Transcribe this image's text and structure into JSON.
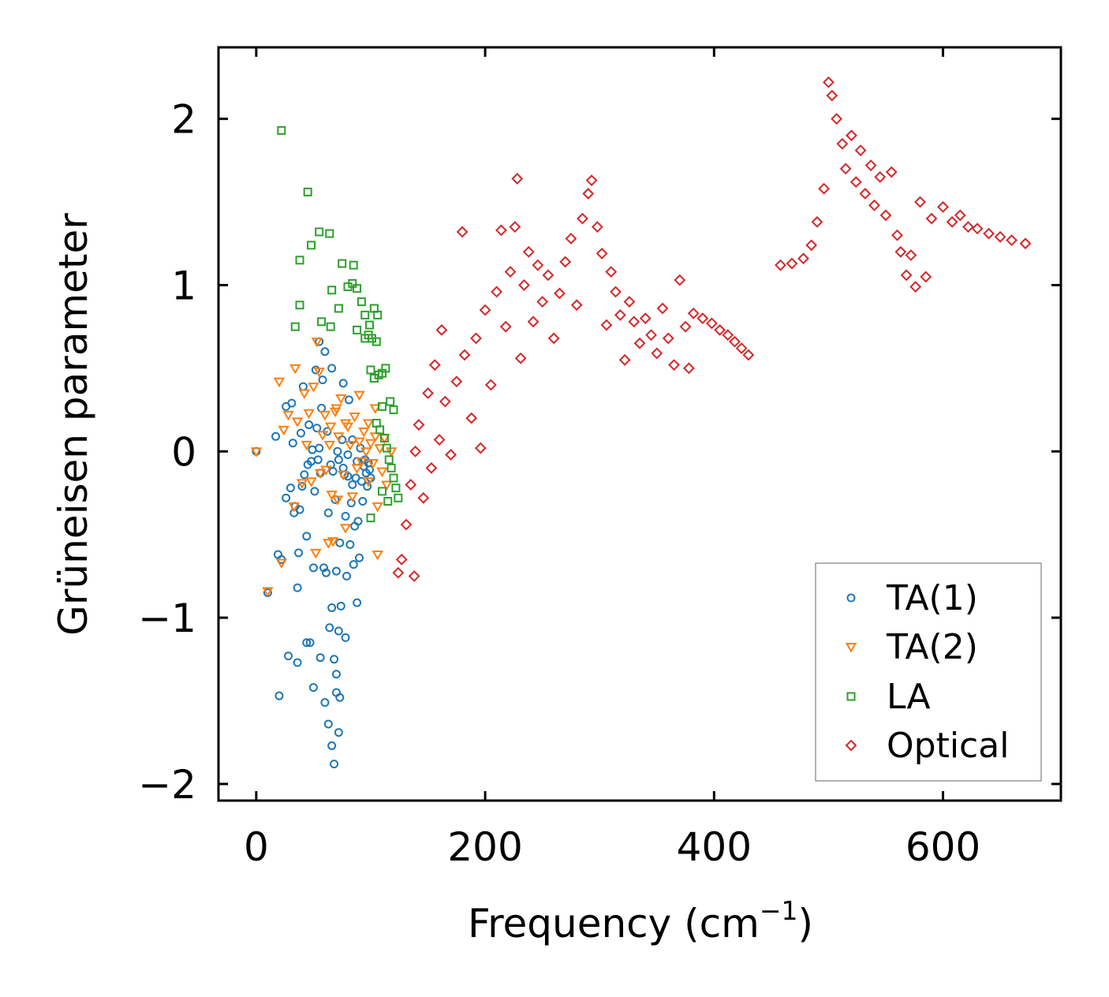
{
  "chart_data": {
    "type": "scatter",
    "title": "",
    "xlabel": "Frequency (cm",
    "xlabel_sup": "−1",
    "xlabel_end": ")",
    "ylabel": "Grüneisen parameter",
    "xlim": [
      -33,
      703
    ],
    "ylim": [
      -2.1,
      2.43
    ],
    "xticks": [
      0,
      200,
      400,
      600
    ],
    "yticks": [
      2,
      1,
      0,
      -1,
      -2
    ],
    "xtick_labels": [
      "0",
      "200",
      "400",
      "600"
    ],
    "ytick_labels": [
      "2",
      "1",
      "0",
      "−1",
      "−2"
    ],
    "legend_position": "lower-right",
    "series": [
      {
        "name": "TA(1)",
        "marker": "circle",
        "color": "#1f77b4",
        "points": [
          [
            0,
            0
          ],
          [
            10,
            -0.85
          ],
          [
            17,
            0.09
          ],
          [
            19,
            -0.62
          ],
          [
            20,
            -1.47
          ],
          [
            22,
            -0.65
          ],
          [
            26,
            0.27
          ],
          [
            26,
            -0.28
          ],
          [
            28,
            -1.23
          ],
          [
            30,
            -0.22
          ],
          [
            31,
            0.29
          ],
          [
            32,
            0.05
          ],
          [
            33,
            -0.37
          ],
          [
            34,
            -0.33
          ],
          [
            36,
            -1.27
          ],
          [
            36,
            -0.82
          ],
          [
            37,
            -0.61
          ],
          [
            38,
            -0.35
          ],
          [
            39,
            0.11
          ],
          [
            40,
            -0.21
          ],
          [
            41,
            0.39
          ],
          [
            42,
            -0.14
          ],
          [
            44,
            -1.15
          ],
          [
            44,
            -0.51
          ],
          [
            45,
            -0.08
          ],
          [
            46,
            0.16
          ],
          [
            47,
            -1.15
          ],
          [
            48,
            -0.06
          ],
          [
            49,
            0.01
          ],
          [
            50,
            -1.42
          ],
          [
            50,
            -0.7
          ],
          [
            51,
            -0.24
          ],
          [
            52,
            0.49
          ],
          [
            53,
            0.14
          ],
          [
            54,
            -0.05
          ],
          [
            55,
            0.02
          ],
          [
            56,
            -1.24
          ],
          [
            56,
            -0.13
          ],
          [
            57,
            0.26
          ],
          [
            58,
            0.43
          ],
          [
            59,
            -0.7
          ],
          [
            60,
            -1.51
          ],
          [
            61,
            -0.73
          ],
          [
            62,
            0.12
          ],
          [
            63,
            -1.64
          ],
          [
            63,
            -0.37
          ],
          [
            64,
            -1.06
          ],
          [
            65,
            -0.08
          ],
          [
            66,
            -1.77
          ],
          [
            66,
            -0.94
          ],
          [
            67,
            -0.12
          ],
          [
            68,
            -1.88
          ],
          [
            68,
            -1.25
          ],
          [
            69,
            -0.29
          ],
          [
            70,
            -1.34
          ],
          [
            70,
            -1.45
          ],
          [
            70,
            -0.72
          ],
          [
            71,
            0.0
          ],
          [
            72,
            -1.69
          ],
          [
            72,
            -1.08
          ],
          [
            73,
            -1.48
          ],
          [
            73,
            -0.55
          ],
          [
            74,
            -0.93
          ],
          [
            75,
            0.07
          ],
          [
            76,
            0.41
          ],
          [
            77,
            -0.14
          ],
          [
            78,
            -1.12
          ],
          [
            78,
            -0.39
          ],
          [
            79,
            -0.75
          ],
          [
            80,
            -0.02
          ],
          [
            81,
            0.31
          ],
          [
            82,
            -0.56
          ],
          [
            83,
            -0.31
          ],
          [
            84,
            0.07
          ],
          [
            85,
            -0.68
          ],
          [
            86,
            -0.45
          ],
          [
            87,
            -0.16
          ],
          [
            88,
            -0.91
          ],
          [
            89,
            -0.42
          ],
          [
            90,
            -0.64
          ],
          [
            91,
            0.02
          ],
          [
            92,
            -0.18
          ],
          [
            93,
            -0.3
          ],
          [
            94,
            -0.09
          ],
          [
            95,
            -0.05
          ],
          [
            96,
            -0.13
          ],
          [
            97,
            -0.21
          ],
          [
            98,
            -0.07
          ],
          [
            99,
            -0.11
          ],
          [
            100,
            -0.16
          ],
          [
            72,
            -0.05
          ],
          [
            76,
            -0.1
          ],
          [
            80,
            -0.15
          ],
          [
            84,
            -0.2
          ],
          [
            88,
            -0.06
          ],
          [
            66,
            0.5
          ],
          [
            60,
            0.6
          ],
          [
            55,
            0.66
          ]
        ]
      },
      {
        "name": "TA(2)",
        "marker": "triangle-down",
        "color": "#ff7f0e",
        "points": [
          [
            0,
            0
          ],
          [
            10,
            -0.84
          ],
          [
            20,
            0.42
          ],
          [
            22,
            -0.67
          ],
          [
            24,
            0.13
          ],
          [
            28,
            0.22
          ],
          [
            33,
            -0.33
          ],
          [
            34,
            0.5
          ],
          [
            36,
            0.18
          ],
          [
            40,
            -0.19
          ],
          [
            42,
            0.35
          ],
          [
            44,
            0.04
          ],
          [
            46,
            0.23
          ],
          [
            48,
            -0.18
          ],
          [
            50,
            0.39
          ],
          [
            52,
            -0.61
          ],
          [
            53,
            0.66
          ],
          [
            55,
            0.48
          ],
          [
            56,
            -0.13
          ],
          [
            58,
            0.1
          ],
          [
            60,
            0.22
          ],
          [
            61,
            -0.11
          ],
          [
            63,
            -0.55
          ],
          [
            64,
            0.04
          ],
          [
            65,
            0.15
          ],
          [
            67,
            -0.54
          ],
          [
            69,
            0.24
          ],
          [
            71,
            -0.29
          ],
          [
            72,
            0.09
          ],
          [
            74,
            0.32
          ],
          [
            76,
            -0.14
          ],
          [
            78,
            -0.46
          ],
          [
            80,
            0.15
          ],
          [
            82,
            0.04
          ],
          [
            84,
            -0.27
          ],
          [
            86,
            0.21
          ],
          [
            88,
            -0.1
          ],
          [
            90,
            0.06
          ],
          [
            92,
            -0.06
          ],
          [
            94,
            0.12
          ],
          [
            96,
            0.0
          ],
          [
            98,
            -0.18
          ],
          [
            100,
            0.05
          ],
          [
            102,
            -0.07
          ],
          [
            104,
            0.09
          ],
          [
            106,
            -0.33
          ],
          [
            108,
            0.02
          ],
          [
            110,
            -0.12
          ],
          [
            112,
            0.08
          ],
          [
            114,
            -0.2
          ],
          [
            118,
            0.0
          ],
          [
            106,
            -0.62
          ],
          [
            104,
            0.26
          ],
          [
            98,
            0.17
          ],
          [
            90,
            0.34
          ],
          [
            70,
            0.26
          ],
          [
            66,
            -0.26
          ],
          [
            78,
            0.17
          ]
        ]
      },
      {
        "name": "LA",
        "marker": "square",
        "color": "#2ca02c",
        "points": [
          [
            22,
            1.93
          ],
          [
            45,
            1.56
          ],
          [
            55,
            1.32
          ],
          [
            48,
            1.24
          ],
          [
            64,
            1.31
          ],
          [
            38,
            1.15
          ],
          [
            75,
            1.13
          ],
          [
            85,
            1.12
          ],
          [
            38,
            0.88
          ],
          [
            66,
            0.97
          ],
          [
            72,
            0.86
          ],
          [
            80,
            0.99
          ],
          [
            84,
            1.01
          ],
          [
            88,
            0.98
          ],
          [
            92,
            0.9
          ],
          [
            95,
            0.82
          ],
          [
            99,
            0.76
          ],
          [
            103,
            0.86
          ],
          [
            106,
            0.82
          ],
          [
            98,
            0.7
          ],
          [
            101,
            0.68
          ],
          [
            105,
            0.66
          ],
          [
            34,
            0.75
          ],
          [
            57,
            0.78
          ],
          [
            65,
            0.75
          ],
          [
            88,
            0.73
          ],
          [
            95,
            0.68
          ],
          [
            100,
            0.49
          ],
          [
            103,
            0.44
          ],
          [
            107,
            0.46
          ],
          [
            110,
            0.47
          ],
          [
            113,
            0.5
          ],
          [
            117,
            0.3
          ],
          [
            110,
            0.27
          ],
          [
            120,
            0.25
          ],
          [
            105,
            0.17
          ],
          [
            108,
            0.13
          ],
          [
            112,
            0.08
          ],
          [
            114,
            0.02
          ],
          [
            116,
            -0.05
          ],
          [
            118,
            -0.1
          ],
          [
            120,
            -0.16
          ],
          [
            122,
            -0.22
          ],
          [
            124,
            -0.28
          ],
          [
            115,
            -0.3
          ],
          [
            110,
            -0.24
          ],
          [
            100,
            -0.4
          ]
        ]
      },
      {
        "name": "Optical",
        "marker": "diamond",
        "color": "#d62728",
        "points": [
          [
            124,
            -0.73
          ],
          [
            127,
            -0.65
          ],
          [
            131,
            -0.44
          ],
          [
            135,
            -0.2
          ],
          [
            139,
            0.0
          ],
          [
            138,
            -0.75
          ],
          [
            142,
            0.16
          ],
          [
            146,
            -0.28
          ],
          [
            150,
            0.35
          ],
          [
            153,
            -0.1
          ],
          [
            156,
            0.52
          ],
          [
            160,
            0.07
          ],
          [
            162,
            0.73
          ],
          [
            165,
            0.3
          ],
          [
            170,
            -0.02
          ],
          [
            175,
            0.42
          ],
          [
            180,
            1.32
          ],
          [
            182,
            0.58
          ],
          [
            188,
            0.2
          ],
          [
            192,
            0.68
          ],
          [
            196,
            0.02
          ],
          [
            200,
            0.85
          ],
          [
            205,
            0.4
          ],
          [
            210,
            0.96
          ],
          [
            214,
            1.33
          ],
          [
            218,
            0.75
          ],
          [
            222,
            1.08
          ],
          [
            226,
            1.35
          ],
          [
            228,
            1.64
          ],
          [
            231,
            0.56
          ],
          [
            234,
            1.0
          ],
          [
            238,
            1.2
          ],
          [
            242,
            0.78
          ],
          [
            246,
            1.12
          ],
          [
            250,
            0.9
          ],
          [
            255,
            1.06
          ],
          [
            260,
            0.68
          ],
          [
            265,
            0.95
          ],
          [
            270,
            1.14
          ],
          [
            275,
            1.28
          ],
          [
            280,
            0.88
          ],
          [
            285,
            1.4
          ],
          [
            290,
            1.55
          ],
          [
            293,
            1.63
          ],
          [
            298,
            1.35
          ],
          [
            302,
            1.19
          ],
          [
            306,
            0.76
          ],
          [
            310,
            1.08
          ],
          [
            314,
            0.96
          ],
          [
            318,
            0.82
          ],
          [
            322,
            0.55
          ],
          [
            326,
            0.9
          ],
          [
            330,
            0.78
          ],
          [
            335,
            0.65
          ],
          [
            340,
            0.8
          ],
          [
            345,
            0.7
          ],
          [
            350,
            0.59
          ],
          [
            355,
            0.86
          ],
          [
            360,
            0.68
          ],
          [
            365,
            0.52
          ],
          [
            370,
            1.03
          ],
          [
            375,
            0.75
          ],
          [
            378,
            0.5
          ],
          [
            382,
            0.83
          ],
          [
            390,
            0.8
          ],
          [
            398,
            0.77
          ],
          [
            405,
            0.73
          ],
          [
            412,
            0.7
          ],
          [
            418,
            0.66
          ],
          [
            424,
            0.62
          ],
          [
            430,
            0.58
          ],
          [
            458,
            1.12
          ],
          [
            468,
            1.13
          ],
          [
            478,
            1.16
          ],
          [
            485,
            1.24
          ],
          [
            490,
            1.38
          ],
          [
            496,
            1.58
          ],
          [
            500,
            2.22
          ],
          [
            503,
            2.14
          ],
          [
            507,
            2.0
          ],
          [
            512,
            1.85
          ],
          [
            515,
            1.7
          ],
          [
            520,
            1.9
          ],
          [
            524,
            1.62
          ],
          [
            528,
            1.81
          ],
          [
            532,
            1.55
          ],
          [
            537,
            1.72
          ],
          [
            540,
            1.48
          ],
          [
            545,
            1.65
          ],
          [
            550,
            1.42
          ],
          [
            555,
            1.68
          ],
          [
            560,
            1.3
          ],
          [
            563,
            1.2
          ],
          [
            568,
            1.06
          ],
          [
            572,
            1.18
          ],
          [
            576,
            0.99
          ],
          [
            580,
            1.5
          ],
          [
            585,
            1.05
          ],
          [
            590,
            1.4
          ],
          [
            600,
            1.47
          ],
          [
            608,
            1.38
          ],
          [
            615,
            1.42
          ],
          [
            622,
            1.35
          ],
          [
            630,
            1.34
          ],
          [
            640,
            1.31
          ],
          [
            650,
            1.29
          ],
          [
            660,
            1.27
          ],
          [
            672,
            1.25
          ]
        ]
      }
    ]
  }
}
